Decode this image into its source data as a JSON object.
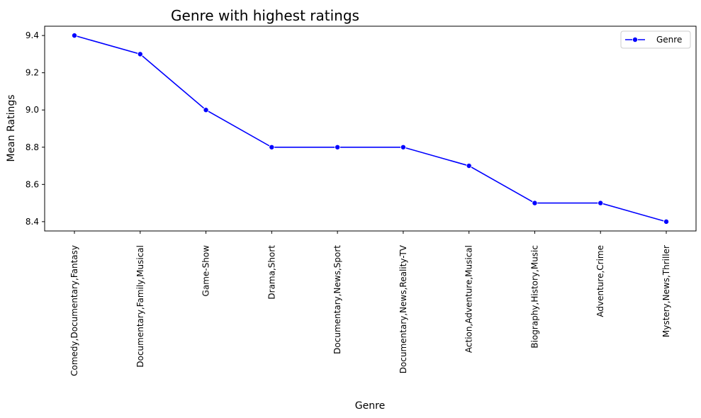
{
  "chart_data": {
    "type": "line",
    "title": "Genre with highest ratings",
    "xlabel": "Genre",
    "ylabel": "Mean Ratings",
    "categories": [
      "Comedy,Documentary,Fantasy",
      "Documentary,Family,Musical",
      "Game-Show",
      "Drama,Short",
      "Documentary,News,Sport",
      "Documentary,News,Reality-TV",
      "Action,Adventure,Musical",
      "Biography,History,Music",
      "Adventure,Crime",
      "Mystery,News,Thriller"
    ],
    "series": [
      {
        "name": "Genre",
        "color": "#0000ff",
        "marker": "circle",
        "values": [
          9.4,
          9.3,
          9.0,
          8.8,
          8.8,
          8.8,
          8.7,
          8.5,
          8.5,
          8.4
        ]
      }
    ],
    "yticks": [
      "8.4",
      "8.6",
      "8.8",
      "9.0",
      "9.2",
      "9.4"
    ],
    "ylim": [
      8.35,
      9.45
    ],
    "grid": false,
    "legend_position": "top-right"
  }
}
